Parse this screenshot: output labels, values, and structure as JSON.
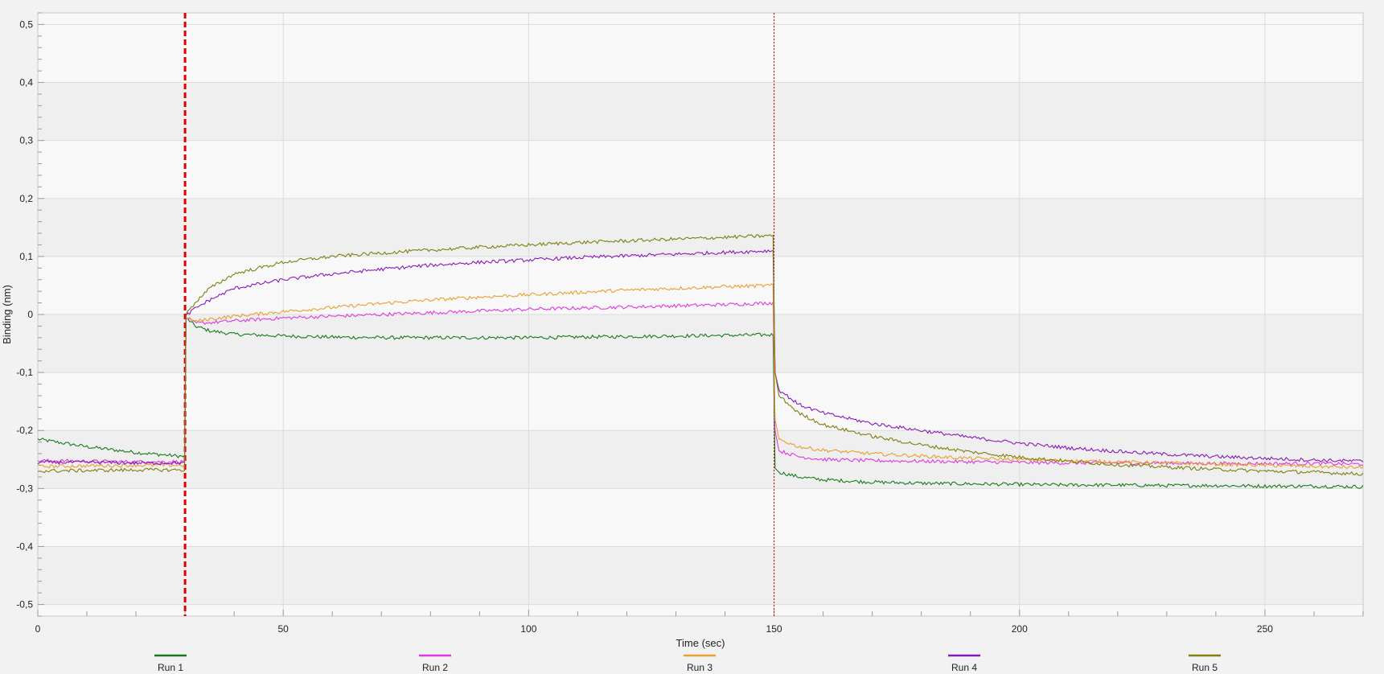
{
  "chart_data": {
    "type": "line",
    "title": "",
    "xlabel": "Time (sec)",
    "ylabel": "Binding (nm)",
    "xlim": [
      0,
      270
    ],
    "ylim": [
      -0.52,
      0.52
    ],
    "xticks": [
      0,
      50,
      100,
      150,
      200,
      250
    ],
    "xtick_labels": [
      "0",
      "50",
      "100",
      "150",
      "200",
      "250"
    ],
    "yticks": [
      0.5,
      0.4,
      0.3,
      0.2,
      0.1,
      0,
      -0.1,
      -0.2,
      -0.3,
      -0.4,
      -0.5
    ],
    "ytick_labels": [
      "0,5",
      "0,4",
      "0,3",
      "0,2",
      "0,1",
      "0",
      "-0,1",
      "-0,2",
      "-0,3",
      "-0,4",
      "-0,5"
    ],
    "grid": true,
    "legend_position": "bottom",
    "markers": [
      {
        "x": 30,
        "color": "#e00000",
        "style": "dashed-bold"
      },
      {
        "x": 150,
        "color": "#c00000",
        "style": "dotted-thin"
      }
    ],
    "series": [
      {
        "name": "Run 1",
        "color": "#1a7a1a",
        "x": [
          0,
          10,
          20,
          29.9,
          30.2,
          32,
          35,
          40,
          50,
          60,
          70,
          80,
          90,
          100,
          110,
          120,
          130,
          140,
          149.8,
          150.2,
          151,
          155,
          160,
          170,
          180,
          190,
          200,
          210,
          220,
          230,
          240,
          250,
          260,
          270
        ],
        "y": [
          -0.215,
          -0.228,
          -0.238,
          -0.245,
          -0.005,
          -0.02,
          -0.028,
          -0.034,
          -0.037,
          -0.039,
          -0.04,
          -0.04,
          -0.04,
          -0.04,
          -0.039,
          -0.038,
          -0.037,
          -0.036,
          -0.035,
          -0.265,
          -0.272,
          -0.28,
          -0.285,
          -0.289,
          -0.291,
          -0.292,
          -0.293,
          -0.294,
          -0.294,
          -0.295,
          -0.295,
          -0.296,
          -0.296,
          -0.297
        ]
      },
      {
        "name": "Run 2",
        "color": "#e038e0",
        "x": [
          0,
          10,
          20,
          29.9,
          30.2,
          32,
          35,
          40,
          50,
          60,
          70,
          80,
          90,
          100,
          110,
          120,
          130,
          140,
          149.8,
          150.2,
          151,
          155,
          160,
          170,
          180,
          190,
          200,
          210,
          220,
          230,
          240,
          250,
          260,
          270
        ],
        "y": [
          -0.252,
          -0.253,
          -0.254,
          -0.254,
          -0.005,
          -0.015,
          -0.014,
          -0.011,
          -0.006,
          -0.003,
          0.0,
          0.003,
          0.006,
          0.009,
          0.011,
          0.013,
          0.015,
          0.017,
          0.02,
          -0.2,
          -0.235,
          -0.245,
          -0.25,
          -0.252,
          -0.253,
          -0.254,
          -0.255,
          -0.256,
          -0.256,
          -0.256,
          -0.257,
          -0.257,
          -0.257,
          -0.258
        ]
      },
      {
        "name": "Run 3",
        "color": "#e8a030",
        "x": [
          0,
          10,
          20,
          29.9,
          30.2,
          32,
          35,
          40,
          50,
          60,
          70,
          80,
          90,
          100,
          110,
          120,
          130,
          140,
          149.8,
          150.2,
          151,
          155,
          160,
          170,
          180,
          190,
          200,
          210,
          220,
          230,
          240,
          250,
          260,
          270
        ],
        "y": [
          -0.262,
          -0.261,
          -0.26,
          -0.26,
          -0.005,
          -0.012,
          -0.008,
          -0.003,
          0.005,
          0.012,
          0.019,
          0.025,
          0.03,
          0.034,
          0.038,
          0.042,
          0.045,
          0.048,
          0.05,
          -0.18,
          -0.215,
          -0.228,
          -0.234,
          -0.24,
          -0.244,
          -0.248,
          -0.25,
          -0.252,
          -0.254,
          -0.256,
          -0.258,
          -0.26,
          -0.262,
          -0.264
        ]
      },
      {
        "name": "Run 4",
        "color": "#8a1ab8",
        "x": [
          0,
          10,
          20,
          29.9,
          30.2,
          32,
          35,
          40,
          50,
          60,
          70,
          80,
          90,
          100,
          110,
          120,
          130,
          140,
          149.8,
          150.2,
          151,
          155,
          160,
          170,
          180,
          190,
          200,
          210,
          220,
          230,
          240,
          250,
          260,
          270
        ],
        "y": [
          -0.255,
          -0.255,
          -0.256,
          -0.256,
          -0.002,
          0.01,
          0.025,
          0.045,
          0.06,
          0.07,
          0.078,
          0.085,
          0.09,
          0.094,
          0.098,
          0.101,
          0.104,
          0.107,
          0.11,
          -0.1,
          -0.13,
          -0.155,
          -0.17,
          -0.188,
          -0.2,
          -0.212,
          -0.222,
          -0.23,
          -0.236,
          -0.241,
          -0.245,
          -0.248,
          -0.251,
          -0.253
        ]
      },
      {
        "name": "Run 5",
        "color": "#7f7f10",
        "x": [
          0,
          10,
          20,
          29.9,
          30.2,
          32,
          35,
          40,
          50,
          60,
          70,
          80,
          90,
          100,
          110,
          120,
          130,
          140,
          149.8,
          150.2,
          151,
          155,
          160,
          170,
          180,
          190,
          200,
          210,
          220,
          230,
          240,
          250,
          260,
          270
        ],
        "y": [
          -0.27,
          -0.269,
          -0.268,
          -0.268,
          0.0,
          0.02,
          0.045,
          0.07,
          0.09,
          0.1,
          0.106,
          0.111,
          0.116,
          0.12,
          0.124,
          0.127,
          0.13,
          0.133,
          0.136,
          -0.1,
          -0.14,
          -0.17,
          -0.19,
          -0.21,
          -0.225,
          -0.237,
          -0.246,
          -0.253,
          -0.259,
          -0.263,
          -0.267,
          -0.27,
          -0.272,
          -0.275
        ]
      }
    ]
  }
}
